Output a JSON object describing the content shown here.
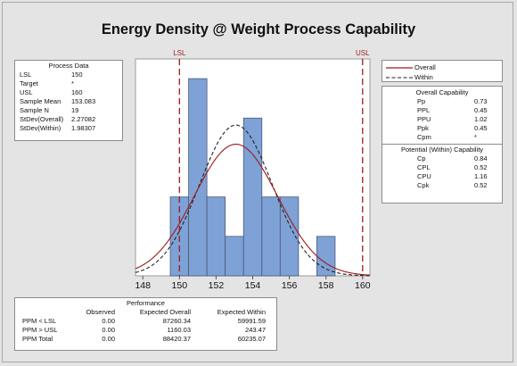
{
  "title": "Energy Density @ Weight Process Capability",
  "process_data": {
    "header": "Process Data",
    "rows": [
      {
        "label": "LSL",
        "value": "150"
      },
      {
        "label": "Target",
        "value": "*"
      },
      {
        "label": "USL",
        "value": "160"
      },
      {
        "label": "Sample Mean",
        "value": "153.083"
      },
      {
        "label": "Sample N",
        "value": "19"
      },
      {
        "label": "StDev(Overall)",
        "value": "2.27082"
      },
      {
        "label": "StDev(Within)",
        "value": "1.98307"
      }
    ]
  },
  "legend": {
    "overall": "Overall",
    "within": "Within",
    "overall_color": "#9e1b1b",
    "within_color": "#222222"
  },
  "overall_capability": {
    "header": "Overall Capability",
    "rows": [
      {
        "label": "Pp",
        "value": "0.73"
      },
      {
        "label": "PPL",
        "value": "0.45"
      },
      {
        "label": "PPU",
        "value": "1.02"
      },
      {
        "label": "Ppk",
        "value": "0.45"
      },
      {
        "label": "Cpm",
        "value": "*"
      }
    ]
  },
  "within_capability": {
    "header": "Potential (Within) Capability",
    "rows": [
      {
        "label": "Cp",
        "value": "0.84"
      },
      {
        "label": "CPL",
        "value": "0.52"
      },
      {
        "label": "CPU",
        "value": "1.16"
      },
      {
        "label": "Cpk",
        "value": "0.52"
      }
    ]
  },
  "performance": {
    "header": "Performance",
    "columns": [
      "",
      "Observed",
      "Expected Overall",
      "Expected Within"
    ],
    "rows": [
      [
        "PPM < LSL",
        "0.00",
        "87260.34",
        "59991.59"
      ],
      [
        "PPM > USL",
        "0.00",
        "1160.03",
        "243.47"
      ],
      [
        "PPM Total",
        "0.00",
        "88420.37",
        "60235.07"
      ]
    ]
  },
  "chart_data": {
    "type": "bar",
    "title": "Energy Density @ Weight Process Capability",
    "bin_width": 1,
    "bins": [
      {
        "x0": 149.5,
        "x1": 150.5,
        "count": 2
      },
      {
        "x0": 150.5,
        "x1": 151.5,
        "count": 5
      },
      {
        "x0": 151.5,
        "x1": 152.5,
        "count": 2
      },
      {
        "x0": 152.5,
        "x1": 153.5,
        "count": 1
      },
      {
        "x0": 153.5,
        "x1": 154.5,
        "count": 4
      },
      {
        "x0": 154.5,
        "x1": 155.5,
        "count": 2
      },
      {
        "x0": 155.5,
        "x1": 156.5,
        "count": 2
      },
      {
        "x0": 157.5,
        "x1": 158.5,
        "count": 1
      }
    ],
    "x_ticks": [
      148,
      150,
      152,
      154,
      156,
      158,
      160
    ],
    "xlim": [
      147.6,
      160.4
    ],
    "ylim": [
      0,
      5.5
    ],
    "spec_lines": [
      {
        "label": "LSL",
        "value": 150
      },
      {
        "label": "USL",
        "value": 160
      }
    ],
    "mean": 153.083,
    "n": 19,
    "stdev_overall": 2.27082,
    "stdev_within": 1.98307,
    "bar_color": "#7ea1d6",
    "spec_color": "#9e1b1b",
    "grid": false
  }
}
